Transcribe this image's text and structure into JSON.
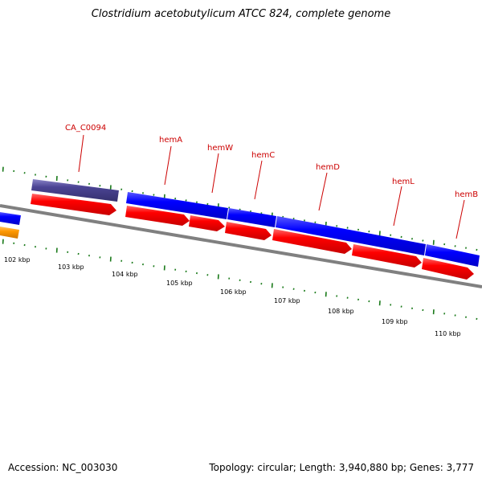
{
  "title": "Clostridium acetobutylicum ATCC 824, complete genome",
  "footer": {
    "accession": "Accession: NC_003030",
    "summary": "Topology: circular; Length: 3,940,880 bp; Genes: 3,777"
  },
  "ticks": [
    "102 kbp",
    "103 kbp",
    "104 kbp",
    "105 kbp",
    "106 kbp",
    "107 kbp",
    "108 kbp",
    "109 kbp",
    "110 kbp"
  ],
  "gene_labels": [
    "CA_C0094",
    "hemA",
    "hemW",
    "hemC",
    "hemD",
    "hemL",
    "hemB"
  ],
  "colors": {
    "cds": "#ff0000",
    "gene": "#0000ff",
    "other_gene": "#4b4494",
    "orange_feature": "#ff9900",
    "label": "#cc0000",
    "tick": "#1a7a1a",
    "backbone": "#808080"
  }
}
